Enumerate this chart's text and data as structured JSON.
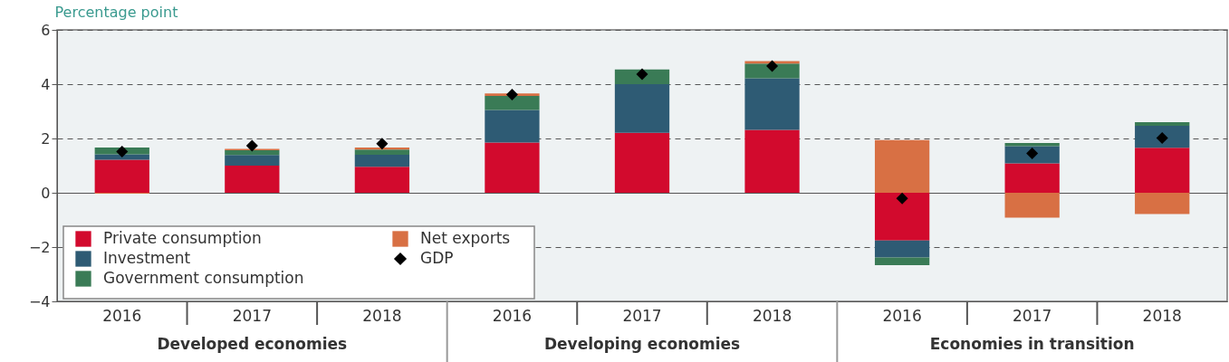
{
  "chart_data": {
    "type": "bar",
    "stacked": true,
    "ylabel": "Percentage point",
    "categories": [
      "2016",
      "2017",
      "2018",
      "2016",
      "2017",
      "2018",
      "2016",
      "2017",
      "2018"
    ],
    "annotations": [
      "Developed economies",
      "Developing economies",
      "Economies in transition"
    ],
    "series": [
      {
        "name": "Private consumption",
        "color": "#d20a2d",
        "values": [
          1.22,
          1.0,
          0.96,
          1.85,
          2.21,
          2.32,
          -1.76,
          1.08,
          1.66
        ]
      },
      {
        "name": "Investment",
        "color": "#2e5b74",
        "values": [
          0.2,
          0.39,
          0.44,
          1.2,
          1.79,
          1.9,
          -0.62,
          0.64,
          0.81
        ]
      },
      {
        "name": "Government consumption",
        "color": "#3a7b56",
        "values": [
          0.25,
          0.18,
          0.19,
          0.52,
          0.54,
          0.54,
          -0.29,
          0.11,
          0.13
        ]
      },
      {
        "name": "Net exports",
        "color": "#d87044",
        "values": [
          -0.03,
          0.05,
          0.08,
          0.09,
          null,
          0.09,
          1.94,
          -0.92,
          -0.78
        ]
      },
      {
        "name": "GDP",
        "type": "scatter",
        "color": "#000000",
        "values": [
          1.52,
          1.73,
          1.81,
          3.62,
          4.37,
          4.67,
          -0.21,
          1.45,
          2.02
        ]
      }
    ],
    "marker": "diamond",
    "ylim": [
      -4,
      6
    ],
    "yticks": [
      -4,
      -2,
      0,
      2,
      4,
      6
    ],
    "grid": "y",
    "legend": "bottom left"
  }
}
